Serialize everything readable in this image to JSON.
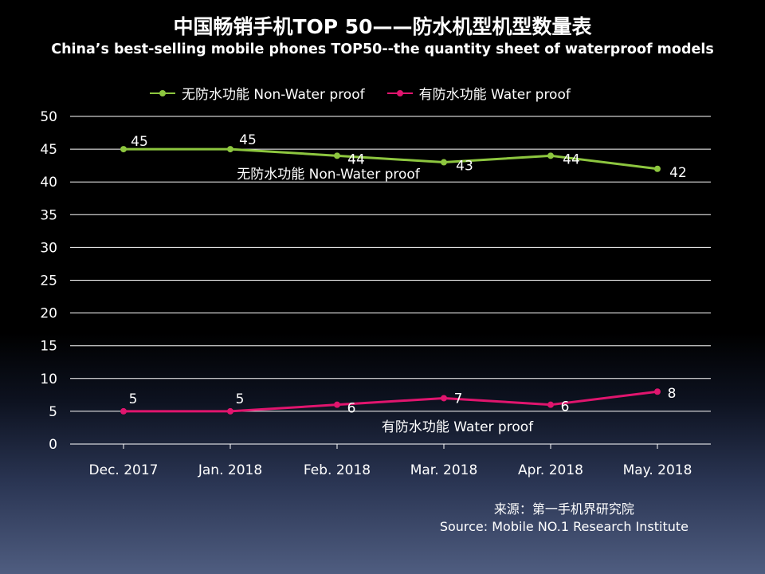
{
  "title": "中国畅销手机TOP 50——防水机型机型数量表",
  "subtitle": "China’s best-selling mobile phones TOP50--the quantity sheet of waterproof models",
  "colors": {
    "non_water_proof": "#8dc63f",
    "water_proof": "#e0156e",
    "grid": "#ffffff"
  },
  "source": {
    "line1": "来源：第一手机界研究院",
    "line2": "Source: Mobile NO.1 Research Institute"
  },
  "chart_data": {
    "type": "line",
    "categories": [
      "Dec. 2017",
      "Jan. 2018",
      "Feb. 2018",
      "Mar. 2018",
      "Apr. 2018",
      "May. 2018"
    ],
    "ylim": [
      0,
      50
    ],
    "yticks": [
      "0",
      "5",
      "10",
      "15",
      "20",
      "25",
      "30",
      "35",
      "40",
      "45",
      "50"
    ],
    "grid": true,
    "legend_position": "top",
    "series": [
      {
        "name": "无防水功能 Non-Water proof",
        "values": [
          45,
          45,
          44,
          43,
          44,
          42
        ],
        "inline_label": "无防水功能   Non-Water proof"
      },
      {
        "name": "有防水功能 Water proof",
        "values": [
          5,
          5,
          6,
          7,
          6,
          8
        ],
        "inline_label": "有防水功能   Water proof"
      }
    ]
  }
}
